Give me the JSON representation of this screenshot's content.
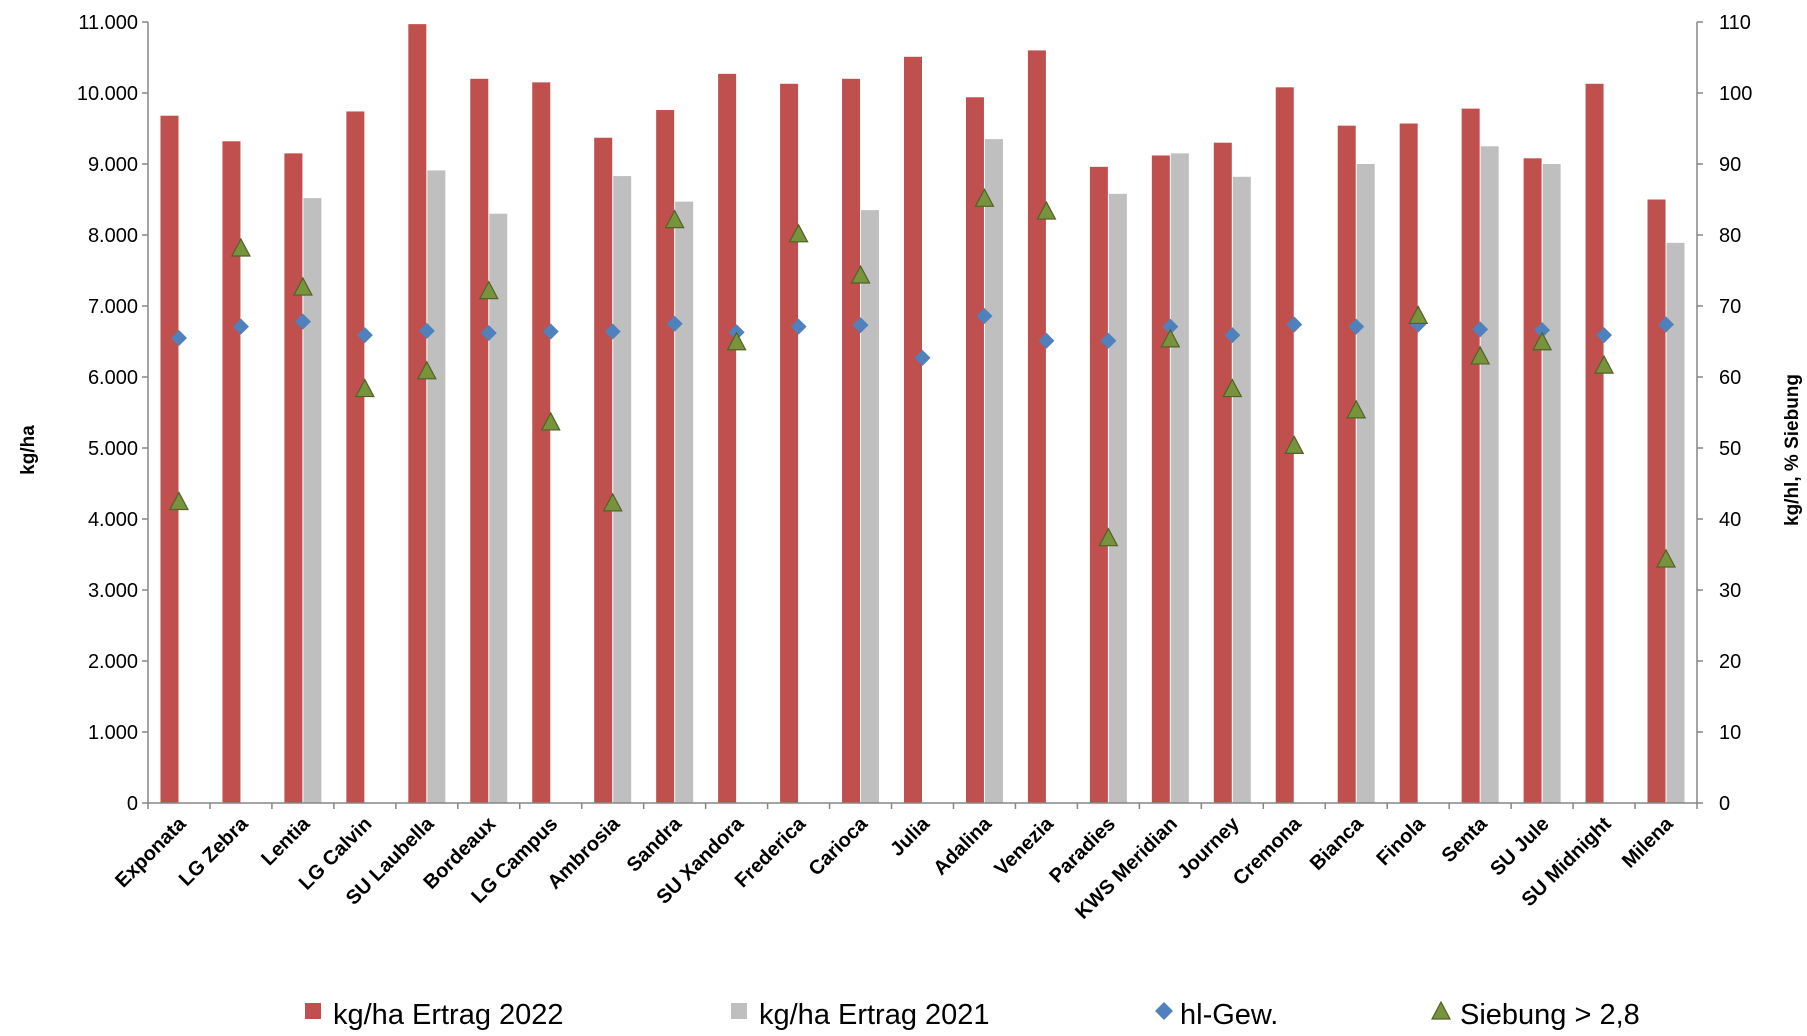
{
  "chart_data": {
    "type": "bar",
    "title": "",
    "categories": [
      "Exponata",
      "LG Zebra",
      "Lentia",
      "LG Calvin",
      "SU Laubella",
      "Bordeaux",
      "LG Campus",
      "Ambrosia",
      "Sandra",
      "SU Xandora",
      "Frederica",
      "Carioca",
      "Julia",
      "Adalina",
      "Venezia",
      "Paradies",
      "KWS Meridian",
      "Journey",
      "Cremona",
      "Bianca",
      "Finola",
      "Senta",
      "SU Jule",
      "SU Midnight",
      "Milena"
    ],
    "ylabel": "kg/ha",
    "y2label": "kg/hl, % Siebung",
    "ylim": [
      0,
      11000
    ],
    "y2lim": [
      0,
      110
    ],
    "yticks": [
      "0",
      "1.000",
      "2.000",
      "3.000",
      "4.000",
      "5.000",
      "6.000",
      "7.000",
      "8.000",
      "9.000",
      "10.000",
      "11.000"
    ],
    "y2ticks": [
      "0",
      "10",
      "20",
      "30",
      "40",
      "50",
      "60",
      "70",
      "80",
      "90",
      "100",
      "110"
    ],
    "grid": false,
    "legend_position": "bottom",
    "series": [
      {
        "name": "kg/ha Ertrag 2022",
        "type": "bar",
        "axis": "left",
        "color": "#C0504D",
        "values": [
          9680,
          9320,
          9150,
          9740,
          10970,
          10200,
          10150,
          9370,
          9760,
          10270,
          10130,
          10200,
          10510,
          9940,
          10600,
          8960,
          9120,
          9300,
          10080,
          9540,
          9570,
          9780,
          9080,
          10130,
          8500
        ]
      },
      {
        "name": "kg/ha Ertrag 2021",
        "type": "bar",
        "axis": "left",
        "color": "#BFBFBF",
        "values": [
          null,
          null,
          8520,
          null,
          8910,
          8300,
          null,
          8830,
          8470,
          null,
          null,
          8350,
          null,
          9350,
          null,
          8580,
          9150,
          8820,
          null,
          9000,
          null,
          9250,
          9000,
          null,
          7890
        ]
      },
      {
        "name": "hl-Gew.",
        "type": "scatter",
        "marker": "diamond",
        "axis": "right",
        "color": "#4F81BD",
        "values": [
          65.5,
          67.1,
          67.8,
          65.9,
          66.5,
          66.2,
          66.4,
          66.4,
          67.5,
          66.3,
          67.1,
          67.3,
          62.7,
          68.6,
          65.1,
          65.1,
          67.1,
          65.9,
          67.4,
          67.1,
          67.4,
          66.7,
          66.6,
          65.9,
          67.4
        ]
      },
      {
        "name": "Siebung > 2,8",
        "type": "scatter",
        "marker": "triangle",
        "axis": "right",
        "color": "#77933C",
        "values": [
          42.3,
          78,
          72.5,
          58.2,
          60.7,
          72,
          53.5,
          42.1,
          82,
          64.8,
          80,
          74.2,
          null,
          85,
          83.2,
          37.2,
          65.2,
          58.2,
          50.2,
          55.2,
          68.5,
          62.8,
          64.8,
          61.5,
          34.2
        ]
      }
    ]
  }
}
